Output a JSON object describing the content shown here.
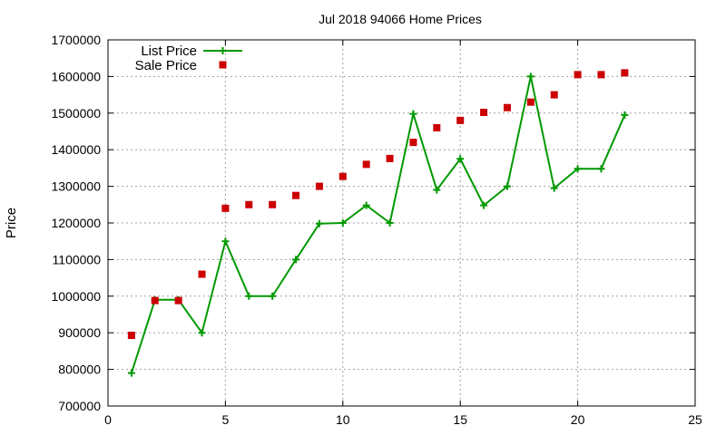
{
  "chart_data": {
    "type": "line",
    "title": "Jul 2018 94066 Home Prices",
    "xlabel": "",
    "ylabel": "Price",
    "xlim": [
      0,
      25
    ],
    "ylim": [
      700000,
      1700000
    ],
    "x_ticks": [
      0,
      5,
      10,
      15,
      20,
      25
    ],
    "y_ticks": [
      700000,
      800000,
      900000,
      1000000,
      1100000,
      1200000,
      1300000,
      1400000,
      1500000,
      1600000,
      1700000
    ],
    "grid": true,
    "legend_position": "top-left",
    "series": [
      {
        "name": "List Price",
        "style": "line-with-plus-markers",
        "color": "#009900",
        "x": [
          1,
          2,
          3,
          4,
          5,
          6,
          7,
          8,
          9,
          10,
          11,
          12,
          13,
          14,
          15,
          16,
          17,
          18,
          19,
          20,
          21,
          22
        ],
        "values": [
          790000,
          990000,
          990000,
          900000,
          1150000,
          1000000,
          1000000,
          1100000,
          1198000,
          1200000,
          1248000,
          1200000,
          1498000,
          1290000,
          1375000,
          1248000,
          1300000,
          1600000,
          1295000,
          1348000,
          1348000,
          1495000
        ]
      },
      {
        "name": "Sale Price",
        "style": "square-markers",
        "color": "#cc0000",
        "x": [
          1,
          2,
          3,
          4,
          5,
          6,
          7,
          8,
          9,
          10,
          11,
          12,
          13,
          14,
          15,
          16,
          17,
          18,
          19,
          20,
          21,
          22
        ],
        "values": [
          893000,
          988000,
          988000,
          1060000,
          1240000,
          1250000,
          1250000,
          1275000,
          1300000,
          1327000,
          1360000,
          1376000,
          1420000,
          1460000,
          1480000,
          1502000,
          1515000,
          1530000,
          1550000,
          1605000,
          1605000,
          1610000
        ]
      }
    ]
  }
}
